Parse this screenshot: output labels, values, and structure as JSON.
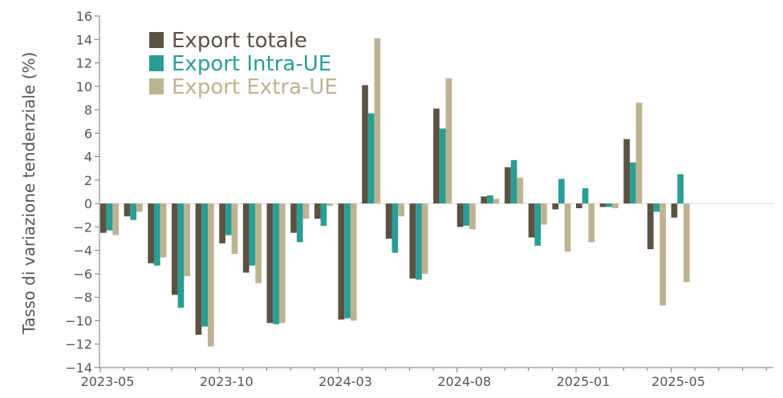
{
  "chart_data": {
    "type": "bar",
    "title": "",
    "xlabel": "",
    "ylabel": "Tasso di variazione tendenziale (%)",
    "ylim": [
      -14,
      16
    ],
    "yticks": [
      -14,
      -12,
      -10,
      -8,
      -6,
      -4,
      -2,
      0,
      2,
      4,
      6,
      8,
      10,
      12,
      14,
      16
    ],
    "xtick_labels": [
      "2023-05",
      "2023-10",
      "2024-03",
      "2024-08",
      "2025-01",
      "2025-05"
    ],
    "categories": [
      "2023-05",
      "2023-06",
      "2023-07",
      "2023-08",
      "2023-09",
      "2023-10",
      "2023-11",
      "2023-12",
      "2024-01",
      "2024-02",
      "2024-03",
      "2024-04",
      "2024-05",
      "2024-06",
      "2024-07",
      "2024-08",
      "2024-09",
      "2024-10",
      "2024-11",
      "2024-12",
      "2025-01",
      "2025-02",
      "2025-03",
      "2025-04",
      "2025-05",
      "2025-06",
      "2025-07",
      "2025-08",
      "2025-09",
      "2025-10"
    ],
    "grid": false,
    "legend_position": "top-left",
    "series": [
      {
        "name": "Export totale",
        "color": "#5c5244",
        "values": [
          -2.5,
          -1.1,
          -5.1,
          -7.8,
          -11.2,
          -3.4,
          -5.9,
          -10.2,
          -2.5,
          -1.3,
          -9.9,
          10.1,
          -3.0,
          -6.4,
          8.1,
          -2.0,
          0.6,
          3.1,
          -2.9,
          -0.5,
          -0.4,
          -0.3,
          5.5,
          -3.9,
          -1.2,
          null,
          null,
          null,
          null,
          null
        ]
      },
      {
        "name": "Export Intra-UE",
        "color": "#2a9d94",
        "values": [
          -2.3,
          -1.4,
          -5.3,
          -8.9,
          -10.5,
          -2.7,
          -5.3,
          -10.3,
          -3.3,
          -1.9,
          -9.8,
          7.7,
          -4.2,
          -6.5,
          6.4,
          -1.9,
          0.7,
          3.7,
          -3.6,
          2.1,
          1.3,
          -0.3,
          3.5,
          -0.7,
          2.5,
          null,
          null,
          null,
          null,
          null
        ]
      },
      {
        "name": "Export Extra-UE",
        "color": "#beb391",
        "values": [
          -2.7,
          -0.7,
          -4.6,
          -6.2,
          -12.2,
          -4.3,
          -6.8,
          -10.2,
          -1.3,
          -0.2,
          -10.0,
          14.1,
          -1.1,
          -6.0,
          10.7,
          -2.2,
          0.4,
          2.2,
          -1.8,
          -4.1,
          -3.3,
          -0.4,
          8.6,
          -8.7,
          -6.7,
          null,
          null,
          null,
          null,
          null
        ]
      }
    ]
  }
}
